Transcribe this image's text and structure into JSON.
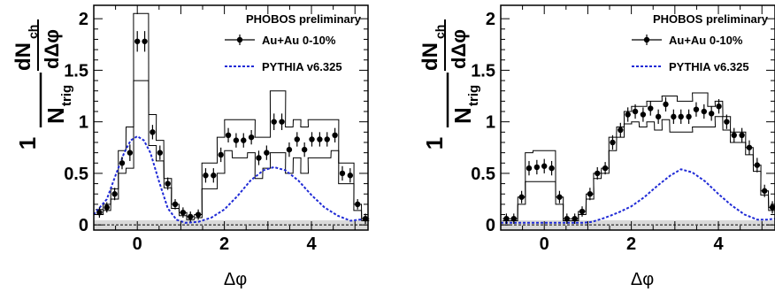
{
  "chart_data": [
    {
      "type": "scatter",
      "xlim": [
        -1.0,
        5.3
      ],
      "ylim": [
        -0.05,
        2.13
      ],
      "xticks": [
        0,
        2,
        4
      ],
      "yticks": [
        0,
        0.5,
        1,
        1.5,
        2
      ],
      "xtick_labels": [
        "0",
        "2",
        "4"
      ],
      "ytick_labels": [
        "0",
        "0.5",
        "1",
        "1.5",
        "2"
      ],
      "xlabel": "Δφ",
      "ylabel_main": "1",
      "ylabel_trig": "N",
      "ylabel_trig_sub": "trig",
      "ylabel_num": "dN",
      "ylabel_num_sub": "ch",
      "ylabel_den": "dΔφ",
      "header": "PHOBOS preliminary",
      "legend_position": "top-right",
      "dashed_zero_line": true,
      "series": [
        {
          "name": "Au+Au 0-10%",
          "x": [
            -0.87,
            -0.7,
            -0.52,
            -0.35,
            -0.17,
            0.0,
            0.17,
            0.35,
            0.52,
            0.7,
            0.87,
            1.05,
            1.22,
            1.4,
            1.57,
            1.75,
            1.92,
            2.09,
            2.27,
            2.44,
            2.62,
            2.79,
            2.97,
            3.14,
            3.32,
            3.49,
            3.67,
            3.84,
            4.01,
            4.19,
            4.36,
            4.54,
            4.71,
            4.89,
            5.06,
            5.24
          ],
          "y": [
            0.12,
            0.17,
            0.3,
            0.6,
            0.7,
            1.78,
            1.78,
            0.9,
            0.7,
            0.4,
            0.2,
            0.12,
            0.08,
            0.1,
            0.48,
            0.48,
            0.68,
            0.87,
            0.82,
            0.82,
            0.85,
            0.65,
            0.7,
            1.0,
            1.0,
            0.73,
            0.83,
            0.73,
            0.83,
            0.83,
            0.83,
            0.87,
            0.5,
            0.48,
            0.2,
            0.06
          ],
          "err": [
            0.05,
            0.05,
            0.06,
            0.06,
            0.08,
            0.1,
            0.1,
            0.07,
            0.07,
            0.06,
            0.05,
            0.05,
            0.05,
            0.05,
            0.07,
            0.07,
            0.07,
            0.07,
            0.07,
            0.07,
            0.07,
            0.07,
            0.07,
            0.08,
            0.08,
            0.07,
            0.07,
            0.07,
            0.07,
            0.07,
            0.07,
            0.07,
            0.07,
            0.07,
            0.05,
            0.05
          ],
          "sys_upper": [
            0.15,
            0.2,
            0.35,
            0.72,
            0.95,
            2.05,
            2.05,
            1.07,
            0.82,
            0.45,
            0.2,
            0.12,
            0.08,
            0.1,
            0.6,
            0.6,
            0.85,
            1.02,
            1.02,
            1.02,
            1.02,
            0.85,
            0.85,
            1.3,
            1.3,
            0.95,
            1.02,
            0.95,
            1.02,
            1.02,
            1.02,
            1.02,
            0.6,
            0.6,
            0.2,
            0.06
          ],
          "sys_lower": [
            0.1,
            0.14,
            0.25,
            0.5,
            0.55,
            1.4,
            1.4,
            0.77,
            0.62,
            0.36,
            0.16,
            0.09,
            0.05,
            0.07,
            0.35,
            0.35,
            0.5,
            0.72,
            0.65,
            0.65,
            0.7,
            0.45,
            0.55,
            0.7,
            0.7,
            0.5,
            0.65,
            0.5,
            0.65,
            0.65,
            0.65,
            0.72,
            0.4,
            0.4,
            0.14,
            0.04
          ]
        },
        {
          "name": "PYTHIA v6.325",
          "style": "dashed-line",
          "x": [
            -1.0,
            -0.7,
            -0.5,
            -0.3,
            -0.15,
            0.0,
            0.15,
            0.3,
            0.5,
            0.7,
            0.9,
            1.1,
            1.4,
            1.7,
            2.0,
            2.3,
            2.6,
            2.9,
            3.14,
            3.4,
            3.7,
            4.0,
            4.3,
            4.6,
            4.9,
            5.1,
            5.3
          ],
          "y": [
            0.1,
            0.25,
            0.48,
            0.7,
            0.82,
            0.86,
            0.82,
            0.7,
            0.42,
            0.16,
            0.05,
            0.02,
            0.03,
            0.07,
            0.15,
            0.28,
            0.43,
            0.53,
            0.56,
            0.53,
            0.43,
            0.29,
            0.17,
            0.09,
            0.04,
            0.05,
            0.06
          ]
        }
      ]
    },
    {
      "type": "scatter",
      "xlim": [
        -1.0,
        5.3
      ],
      "ylim": [
        -0.05,
        2.13
      ],
      "xticks": [
        0,
        2,
        4
      ],
      "yticks": [
        0,
        0.5,
        1,
        1.5,
        2
      ],
      "xtick_labels": [
        "0",
        "2",
        "4"
      ],
      "ytick_labels": [
        "0",
        "0.5",
        "1",
        "1.5",
        "2"
      ],
      "xlabel": "Δφ",
      "ylabel_main": "1",
      "ylabel_trig": "N",
      "ylabel_trig_sub": "trig",
      "ylabel_num": "dN",
      "ylabel_num_sub": "ch",
      "ylabel_den": "dΔφ",
      "header": "PHOBOS preliminary",
      "legend_position": "top-right",
      "dashed_zero_line": true,
      "series": [
        {
          "name": "Au+Au 0-10%",
          "x": [
            -0.87,
            -0.7,
            -0.52,
            -0.35,
            -0.17,
            0.0,
            0.17,
            0.35,
            0.52,
            0.7,
            0.87,
            1.05,
            1.22,
            1.4,
            1.57,
            1.75,
            1.92,
            2.09,
            2.27,
            2.44,
            2.62,
            2.79,
            2.97,
            3.14,
            3.32,
            3.49,
            3.67,
            3.84,
            4.01,
            4.19,
            4.36,
            4.54,
            4.71,
            4.89,
            5.06,
            5.24
          ],
          "y": [
            0.06,
            0.06,
            0.27,
            0.55,
            0.56,
            0.57,
            0.55,
            0.27,
            0.06,
            0.06,
            0.13,
            0.3,
            0.5,
            0.55,
            0.8,
            0.92,
            1.07,
            1.1,
            1.07,
            1.13,
            1.05,
            1.17,
            1.05,
            1.05,
            1.05,
            1.12,
            1.1,
            1.08,
            1.15,
            1.0,
            0.87,
            0.87,
            0.75,
            0.58,
            0.33,
            0.17
          ],
          "err": [
            0.05,
            0.05,
            0.06,
            0.07,
            0.07,
            0.07,
            0.07,
            0.06,
            0.05,
            0.05,
            0.05,
            0.06,
            0.06,
            0.06,
            0.07,
            0.07,
            0.07,
            0.07,
            0.07,
            0.07,
            0.07,
            0.07,
            0.07,
            0.07,
            0.07,
            0.07,
            0.07,
            0.07,
            0.07,
            0.07,
            0.07,
            0.07,
            0.07,
            0.07,
            0.06,
            0.06
          ],
          "sys_upper": [
            0.06,
            0.06,
            0.27,
            0.7,
            0.72,
            0.72,
            0.72,
            0.27,
            0.06,
            0.06,
            0.13,
            0.3,
            0.5,
            0.55,
            0.85,
            0.95,
            1.1,
            1.15,
            1.15,
            1.2,
            1.2,
            1.25,
            1.25,
            1.2,
            1.2,
            1.28,
            1.28,
            1.15,
            1.2,
            1.05,
            0.9,
            0.9,
            0.75,
            0.58,
            0.33,
            0.17
          ],
          "sys_lower": [
            0.04,
            0.04,
            0.2,
            0.42,
            0.42,
            0.42,
            0.42,
            0.2,
            0.04,
            0.04,
            0.1,
            0.25,
            0.45,
            0.5,
            0.72,
            0.85,
            0.98,
            1.0,
            0.95,
            1.0,
            0.92,
            1.02,
            0.9,
            0.9,
            0.9,
            0.95,
            0.95,
            0.95,
            1.05,
            0.92,
            0.8,
            0.8,
            0.68,
            0.52,
            0.29,
            0.14
          ]
        },
        {
          "name": "PYTHIA v6.325",
          "style": "dashed-line",
          "x": [
            -1.0,
            -0.7,
            -0.5,
            -0.3,
            -0.15,
            0.0,
            0.15,
            0.3,
            0.5,
            0.7,
            0.9,
            1.1,
            1.4,
            1.7,
            2.0,
            2.3,
            2.6,
            2.9,
            3.14,
            3.4,
            3.7,
            4.0,
            4.3,
            4.6,
            4.9,
            5.1,
            5.3
          ],
          "y": [
            0.02,
            0.02,
            0.02,
            0.02,
            0.02,
            0.02,
            0.02,
            0.02,
            0.02,
            0.02,
            0.02,
            0.03,
            0.07,
            0.12,
            0.18,
            0.27,
            0.38,
            0.48,
            0.54,
            0.51,
            0.42,
            0.3,
            0.19,
            0.1,
            0.05,
            0.05,
            0.06
          ]
        }
      ]
    }
  ]
}
